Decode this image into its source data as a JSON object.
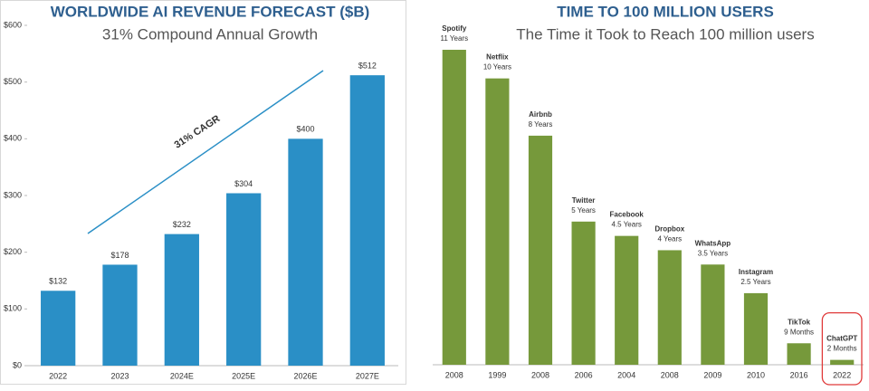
{
  "chart_data": [
    {
      "type": "bar",
      "title": "WORLDWIDE AI REVENUE FORECAST ($B)",
      "subtitle": "31% Compound Annual Growth",
      "categories": [
        "2022",
        "2023",
        "2024E",
        "2025E",
        "2026E",
        "2027E"
      ],
      "values": [
        132,
        178,
        232,
        304,
        400,
        512
      ],
      "value_labels": [
        "$132",
        "$178",
        "$232",
        "$304",
        "$400",
        "$512"
      ],
      "color": "#2a8fc6",
      "ylim": [
        0,
        600
      ],
      "yticks": [
        {
          "value": 0,
          "label": "$0"
        },
        {
          "value": 100,
          "label": "$100"
        },
        {
          "value": 200,
          "label": "$200"
        },
        {
          "value": 300,
          "label": "$300"
        },
        {
          "value": 400,
          "label": "$400"
        },
        {
          "value": 500,
          "label": "$500"
        },
        {
          "value": 600,
          "label": "$600"
        }
      ],
      "annotation": "31% CAGR"
    },
    {
      "type": "bar",
      "title": "TIME TO 100 MILLION USERS",
      "subtitle": "The Time it Took to Reach 100 million users",
      "categories": [
        "Spotify",
        "Netflix",
        "Airbnb",
        "Twitter",
        "Facebook",
        "Dropbox",
        "WhatsApp",
        "Instagram",
        "TikTok",
        "ChatGPT"
      ],
      "launch_years": [
        "2008",
        "1999",
        "2008",
        "2006",
        "2004",
        "2008",
        "2009",
        "2010",
        "2016",
        "2022"
      ],
      "values": [
        11,
        10,
        8,
        5,
        4.5,
        4,
        3.5,
        2.5,
        0.75,
        0.17
      ],
      "value_labels": [
        "11 Years",
        "10 Years",
        "8 Years",
        "5 Years",
        "4.5 Years",
        "4 Years",
        "3.5 Years",
        "2.5 Years",
        "9 Months",
        "2 Months"
      ],
      "color": "#76993b",
      "highlight_index": 9,
      "highlight_color": "#e03a3a"
    }
  ]
}
